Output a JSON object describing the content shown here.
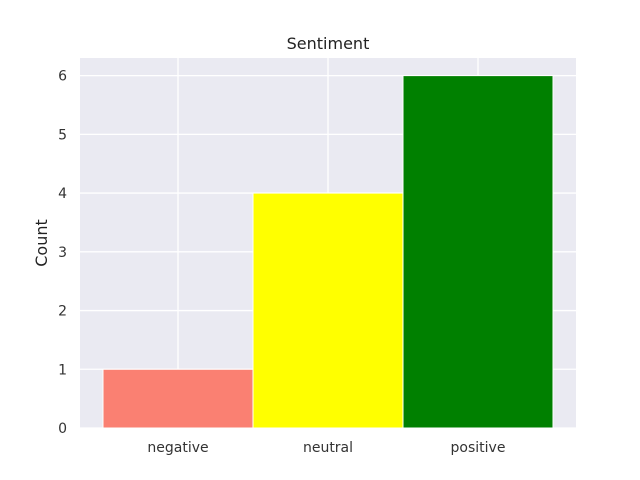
{
  "chart_data": {
    "type": "bar",
    "title": "Sentiment",
    "xlabel": "",
    "ylabel": "Count",
    "categories": [
      "negative",
      "neutral",
      "positive"
    ],
    "values": [
      1,
      4,
      6
    ],
    "colors": [
      "#fa8072",
      "#ffff00",
      "#008000"
    ],
    "ylim": [
      0,
      6.3
    ],
    "yticks": [
      0,
      1,
      2,
      3,
      4,
      5,
      6
    ],
    "grid": true,
    "plot_background": "#eaeaf2",
    "grid_color": "#ffffff"
  }
}
